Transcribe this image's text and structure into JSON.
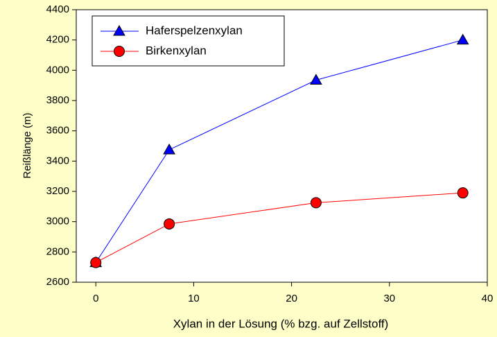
{
  "chart_data": {
    "type": "line",
    "xlabel": "Xylan in der Lösung  (% bzg. auf Zellstoff)",
    "ylabel": "Reißlänge (m)",
    "xlim": [
      -2,
      40
    ],
    "xticks": [
      0,
      10,
      20,
      30,
      40
    ],
    "ylim": [
      2600,
      4400
    ],
    "yticks": [
      2600,
      2800,
      3000,
      3200,
      3400,
      3600,
      3800,
      4000,
      4200,
      4400
    ],
    "legend": "upper left",
    "series": [
      {
        "name": "Haferspelzenxylan",
        "color": "#0000ff",
        "marker": "triangle",
        "x": [
          0,
          7.5,
          22.5,
          37.5
        ],
        "values": [
          2730,
          3475,
          3935,
          4200
        ]
      },
      {
        "name": "Birkenxylan",
        "color": "#ff0000",
        "marker": "circle",
        "x": [
          0,
          7.5,
          22.5,
          37.5
        ],
        "values": [
          2730,
          2985,
          3125,
          3190
        ]
      }
    ]
  }
}
